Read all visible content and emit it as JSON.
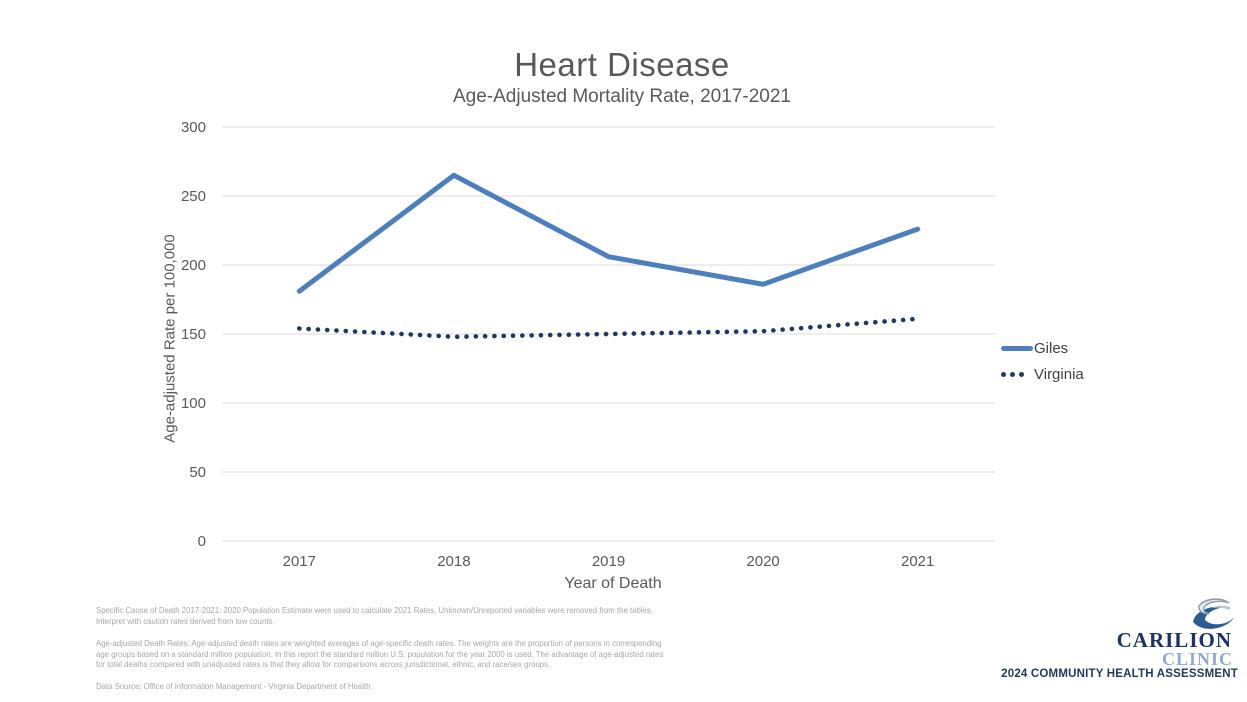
{
  "title": "Heart Disease",
  "subtitle": "Age-Adjusted Mortality Rate, 2017-2021",
  "chart_data": {
    "type": "line",
    "categories": [
      "2017",
      "2018",
      "2019",
      "2020",
      "2021"
    ],
    "series": [
      {
        "name": "Giles",
        "values": [
          181,
          265,
          206,
          186,
          226
        ],
        "color": "#4d7ebe",
        "style": "solid"
      },
      {
        "name": "Virginia",
        "values": [
          154,
          148,
          150,
          152,
          161
        ],
        "color": "#1f3864",
        "style": "dotted"
      }
    ],
    "title": "Heart Disease",
    "subtitle": "Age-Adjusted Mortality Rate, 2017-2021",
    "xlabel": "Year of Death",
    "ylabel": "Age-adjusted Rate per 100,000",
    "ylim": [
      0,
      300
    ],
    "ytick_step": 50,
    "grid": true,
    "gridline_color": "#e2e2e2",
    "legend_position": "right"
  },
  "footnotes": {
    "note1": {
      "lines": [
        "Specific Cause of Death 2017-2021: 2020 Population Estimate were used to calculate 2021 Rates, Unknown/Unreported variables were removed from the tables,",
        "Interpret with caution rates derived from low counts."
      ]
    },
    "note2": {
      "lines": [
        "Age-adjusted Death Rates: Age-adjusted death rates are weighted averages of age-specific death rates. The weights are the proportion of persons in corresponding",
        "age groups based on a standard million population. In this report the standard million U.S. population for the year 2000 is used. The advantage of age-adjusted rates",
        "for total deaths compared with unadjusted rates is that they allow for comparisons across jurisdictional, ethnic, and race/sex groups."
      ]
    },
    "note3": {
      "lines": [
        "Data Source: Office of Information Management - Virginia Department of Health"
      ]
    }
  },
  "branding": {
    "org_line1": "CARILION",
    "org_line2": "CLINIC",
    "assessment": "2024 COMMUNITY HEALTH ASSESSMENT",
    "navy": "#1f3864",
    "light_blue": "#8fabd0"
  }
}
